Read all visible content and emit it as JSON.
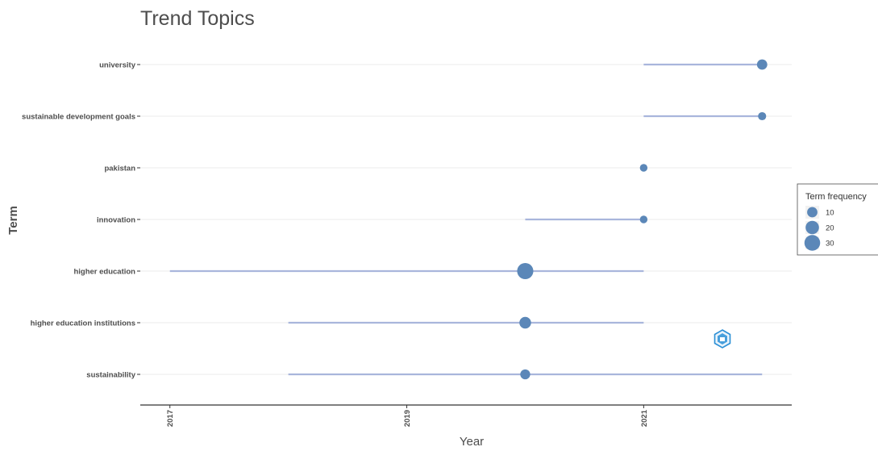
{
  "chart_data": {
    "type": "scatter",
    "title": "Trend Topics",
    "xlabel": "Year",
    "ylabel": "Term",
    "x_ticks": [
      "2017",
      "2019",
      "2021"
    ],
    "xlim": [
      2016.75,
      2022.25
    ],
    "grid": true,
    "legend": {
      "title": "Term frequency",
      "position": "right",
      "entries": [
        {
          "label": "10",
          "value": 10
        },
        {
          "label": "20",
          "value": 20
        },
        {
          "label": "30",
          "value": 30
        }
      ]
    },
    "terms": [
      {
        "term": "university",
        "start": 2021.0,
        "median": 2022.0,
        "end": 2022.0,
        "freq": 10
      },
      {
        "term": "sustainable development goals",
        "start": 2021.0,
        "median": 2022.0,
        "end": 2022.0,
        "freq": 5
      },
      {
        "term": "pakistan",
        "start": 2021.0,
        "median": 2021.0,
        "end": 2021.0,
        "freq": 4
      },
      {
        "term": "innovation",
        "start": 2020.0,
        "median": 2021.0,
        "end": 2021.0,
        "freq": 4
      },
      {
        "term": "higher education",
        "start": 2017.0,
        "median": 2020.0,
        "end": 2021.0,
        "freq": 32
      },
      {
        "term": "higher education institutions",
        "start": 2018.0,
        "median": 2020.0,
        "end": 2021.0,
        "freq": 14
      },
      {
        "term": "sustainability",
        "start": 2018.0,
        "median": 2020.0,
        "end": 2022.0,
        "freq": 9
      }
    ],
    "colors": {
      "point": "#5b87b8",
      "segment": "#a9b6dc",
      "axis_text": "#4d4d4d",
      "grid": "#ebebeb"
    }
  }
}
